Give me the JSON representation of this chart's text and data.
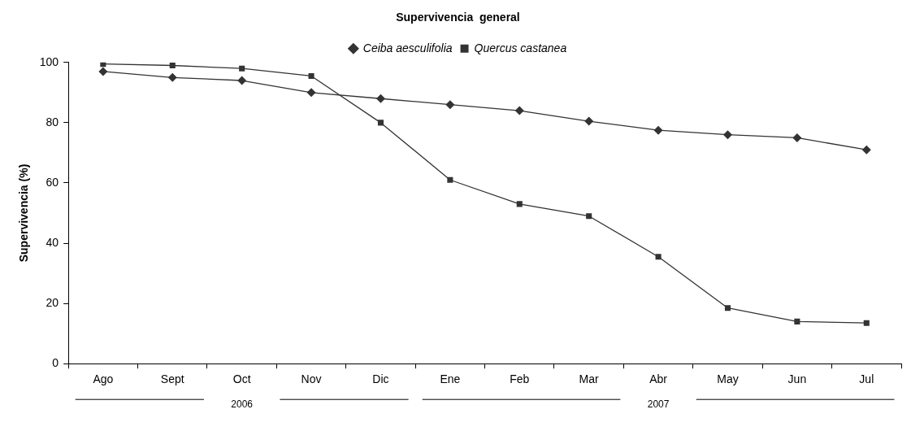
{
  "chart_data": {
    "type": "line",
    "title": "Supervivencia  general",
    "ylabel": "Supervivencia (%)",
    "categories": [
      "Ago",
      "Sept",
      "Oct",
      "Nov",
      "Dic",
      "Ene",
      "Feb",
      "Mar",
      "Abr",
      "May",
      "Jun",
      "Jul"
    ],
    "series": [
      {
        "name": "Ceiba aesculifolia",
        "color": "#333333",
        "marker": "diamond",
        "values": [
          97,
          95,
          94,
          90,
          88,
          86,
          84,
          80.5,
          77.5,
          76,
          75,
          71
        ]
      },
      {
        "name": "Quercus castanea",
        "color": "#333333",
        "marker": "square",
        "values": [
          99.5,
          99,
          98,
          95.5,
          80,
          61,
          53,
          49,
          35.5,
          18.5,
          14,
          13.5
        ]
      }
    ],
    "ylim": [
      0,
      100
    ],
    "yticks": [
      0,
      20,
      40,
      60,
      80,
      100
    ],
    "grid": false,
    "legend": "top",
    "line_style": "solid",
    "annotations": [
      "2006",
      "2007"
    ]
  }
}
